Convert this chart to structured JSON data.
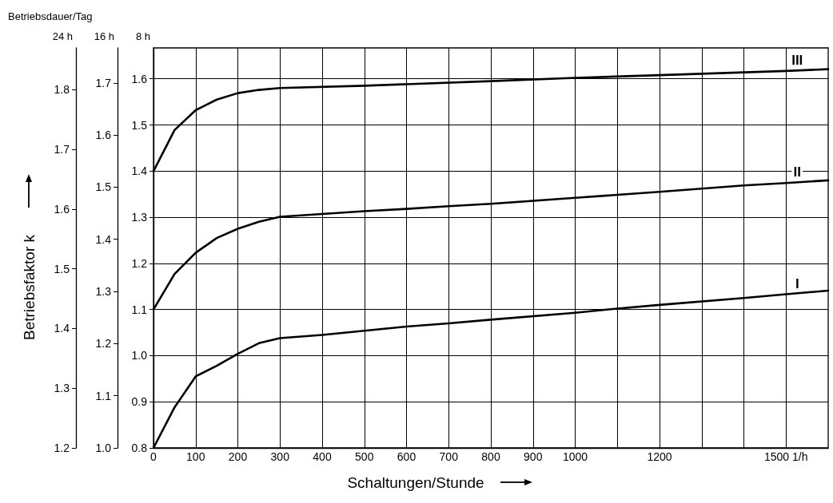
{
  "chart_data": {
    "type": "line",
    "xlabel": "Schaltungen/Stunde",
    "ylabel": "8 h",
    "y2label": "16 h",
    "y3label": "24 h",
    "annotations": [
      "Betriebsdauer/Tag",
      "Betriebsfaktor k"
    ],
    "xlim": [
      0,
      1600
    ],
    "xticks": [
      0,
      100,
      200,
      300,
      400,
      500,
      600,
      700,
      800,
      900,
      1000,
      {
        "value": 1100,
        "label": null
      },
      1200,
      {
        "value": 1300,
        "label": null
      },
      {
        "value": 1400,
        "label": null
      },
      {
        "value": 1500,
        "label": "1500 1/h"
      }
    ],
    "ylim": [
      0.8,
      1.667
    ],
    "yticks": [
      0.8,
      0.9,
      {
        "value": 1,
        "label": "1.0"
      },
      1.1,
      1.2,
      1.3,
      1.4,
      1.5,
      1.6
    ],
    "y2lim": [
      1.0,
      1.767
    ],
    "y2ticks": [
      {
        "value": 1,
        "label": "1.0"
      },
      1.1,
      1.2,
      1.3,
      1.4,
      1.5,
      1.6,
      1.7
    ],
    "y3lim": [
      1.2,
      1.87
    ],
    "y3ticks": [
      1.2,
      1.3,
      1.4,
      1.5,
      1.6,
      1.7,
      1.8
    ],
    "grid": true,
    "legend": false,
    "marker": "none",
    "line_style": "solid",
    "series": [
      {
        "name": "I",
        "color": "#000000",
        "x": [
          0,
          50,
          100,
          150,
          200,
          250,
          300,
          400,
          500,
          600,
          700,
          800,
          1000,
          1100,
          1200,
          1400,
          1500,
          1600
        ],
        "values": [
          0.8,
          0.888,
          0.955,
          0.978,
          1.004,
          1.027,
          1.038,
          1.045,
          1.054,
          1.063,
          1.07,
          1.078,
          1.093,
          1.102,
          1.11,
          1.125,
          1.133,
          1.141
        ]
      },
      {
        "name": "II",
        "color": "#000000",
        "x": [
          0,
          50,
          100,
          150,
          200,
          250,
          300,
          400,
          500,
          600,
          700,
          800,
          1000,
          1200,
          1400,
          1500,
          1600
        ],
        "values": [
          1.1,
          1.177,
          1.223,
          1.255,
          1.275,
          1.29,
          1.301,
          1.307,
          1.313,
          1.318,
          1.324,
          1.329,
          1.342,
          1.355,
          1.369,
          1.374,
          1.38
        ]
      },
      {
        "name": "III",
        "color": "#000000",
        "x": [
          0,
          50,
          100,
          150,
          200,
          250,
          300,
          500,
          800,
          1000,
          1200,
          1400,
          1500,
          1600
        ],
        "values": [
          1.4,
          1.489,
          1.532,
          1.555,
          1.569,
          1.576,
          1.58,
          1.585,
          1.595,
          1.602,
          1.608,
          1.614,
          1.617,
          1.621
        ]
      }
    ]
  }
}
